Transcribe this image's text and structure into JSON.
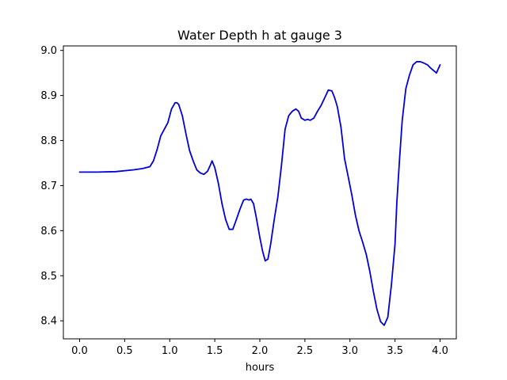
{
  "chart_data": {
    "type": "line",
    "title": "Water Depth h at gauge 3",
    "xlabel": "hours",
    "ylabel": "",
    "xlim": [
      -0.18,
      4.18
    ],
    "ylim": [
      8.36,
      9.01
    ],
    "grid": false,
    "x_ticks": [
      {
        "value": 0.0,
        "label": "0.0"
      },
      {
        "value": 0.5,
        "label": "0.5"
      },
      {
        "value": 1.0,
        "label": "1.0"
      },
      {
        "value": 1.5,
        "label": "1.5"
      },
      {
        "value": 2.0,
        "label": "2.0"
      },
      {
        "value": 2.5,
        "label": "2.5"
      },
      {
        "value": 3.0,
        "label": "3.0"
      },
      {
        "value": 3.5,
        "label": "3.5"
      },
      {
        "value": 4.0,
        "label": "4.0"
      }
    ],
    "y_ticks": [
      {
        "value": 8.4,
        "label": "8.4"
      },
      {
        "value": 8.5,
        "label": "8.5"
      },
      {
        "value": 8.6,
        "label": "8.6"
      },
      {
        "value": 8.7,
        "label": "8.7"
      },
      {
        "value": 8.8,
        "label": "8.8"
      },
      {
        "value": 8.9,
        "label": "8.9"
      },
      {
        "value": 9.0,
        "label": "9.0"
      }
    ],
    "series": [
      {
        "color": "#0000dd",
        "x": [
          0.0,
          0.2,
          0.4,
          0.6,
          0.7,
          0.78,
          0.82,
          0.86,
          0.9,
          0.94,
          0.98,
          1.02,
          1.06,
          1.08,
          1.1,
          1.14,
          1.18,
          1.22,
          1.26,
          1.3,
          1.34,
          1.38,
          1.42,
          1.45,
          1.47,
          1.5,
          1.54,
          1.58,
          1.62,
          1.66,
          1.7,
          1.74,
          1.78,
          1.82,
          1.85,
          1.88,
          1.9,
          1.93,
          1.96,
          2.0,
          2.03,
          2.06,
          2.09,
          2.12,
          2.16,
          2.2,
          2.24,
          2.28,
          2.32,
          2.36,
          2.4,
          2.43,
          2.46,
          2.5,
          2.53,
          2.56,
          2.6,
          2.64,
          2.68,
          2.72,
          2.76,
          2.8,
          2.83,
          2.86,
          2.9,
          2.94,
          2.98,
          3.02,
          3.06,
          3.1,
          3.14,
          3.18,
          3.22,
          3.26,
          3.3,
          3.34,
          3.38,
          3.42,
          3.46,
          3.5,
          3.52,
          3.55,
          3.58,
          3.62,
          3.66,
          3.7,
          3.74,
          3.78,
          3.82,
          3.86,
          3.9,
          3.93,
          3.96,
          4.0
        ],
        "y": [
          8.73,
          8.73,
          8.731,
          8.735,
          8.738,
          8.742,
          8.755,
          8.78,
          8.81,
          8.825,
          8.84,
          8.87,
          8.884,
          8.884,
          8.88,
          8.855,
          8.815,
          8.778,
          8.755,
          8.735,
          8.728,
          8.725,
          8.732,
          8.745,
          8.755,
          8.74,
          8.705,
          8.66,
          8.625,
          8.603,
          8.603,
          8.625,
          8.648,
          8.668,
          8.67,
          8.668,
          8.67,
          8.66,
          8.63,
          8.585,
          8.555,
          8.533,
          8.537,
          8.57,
          8.625,
          8.675,
          8.745,
          8.825,
          8.855,
          8.865,
          8.87,
          8.865,
          8.85,
          8.845,
          8.847,
          8.845,
          8.85,
          8.865,
          8.878,
          8.895,
          8.912,
          8.91,
          8.895,
          8.875,
          8.83,
          8.76,
          8.72,
          8.68,
          8.635,
          8.6,
          8.575,
          8.548,
          8.51,
          8.465,
          8.425,
          8.398,
          8.39,
          8.408,
          8.48,
          8.57,
          8.662,
          8.758,
          8.845,
          8.915,
          8.945,
          8.968,
          8.975,
          8.975,
          8.972,
          8.968,
          8.96,
          8.955,
          8.95,
          8.968
        ]
      }
    ]
  }
}
